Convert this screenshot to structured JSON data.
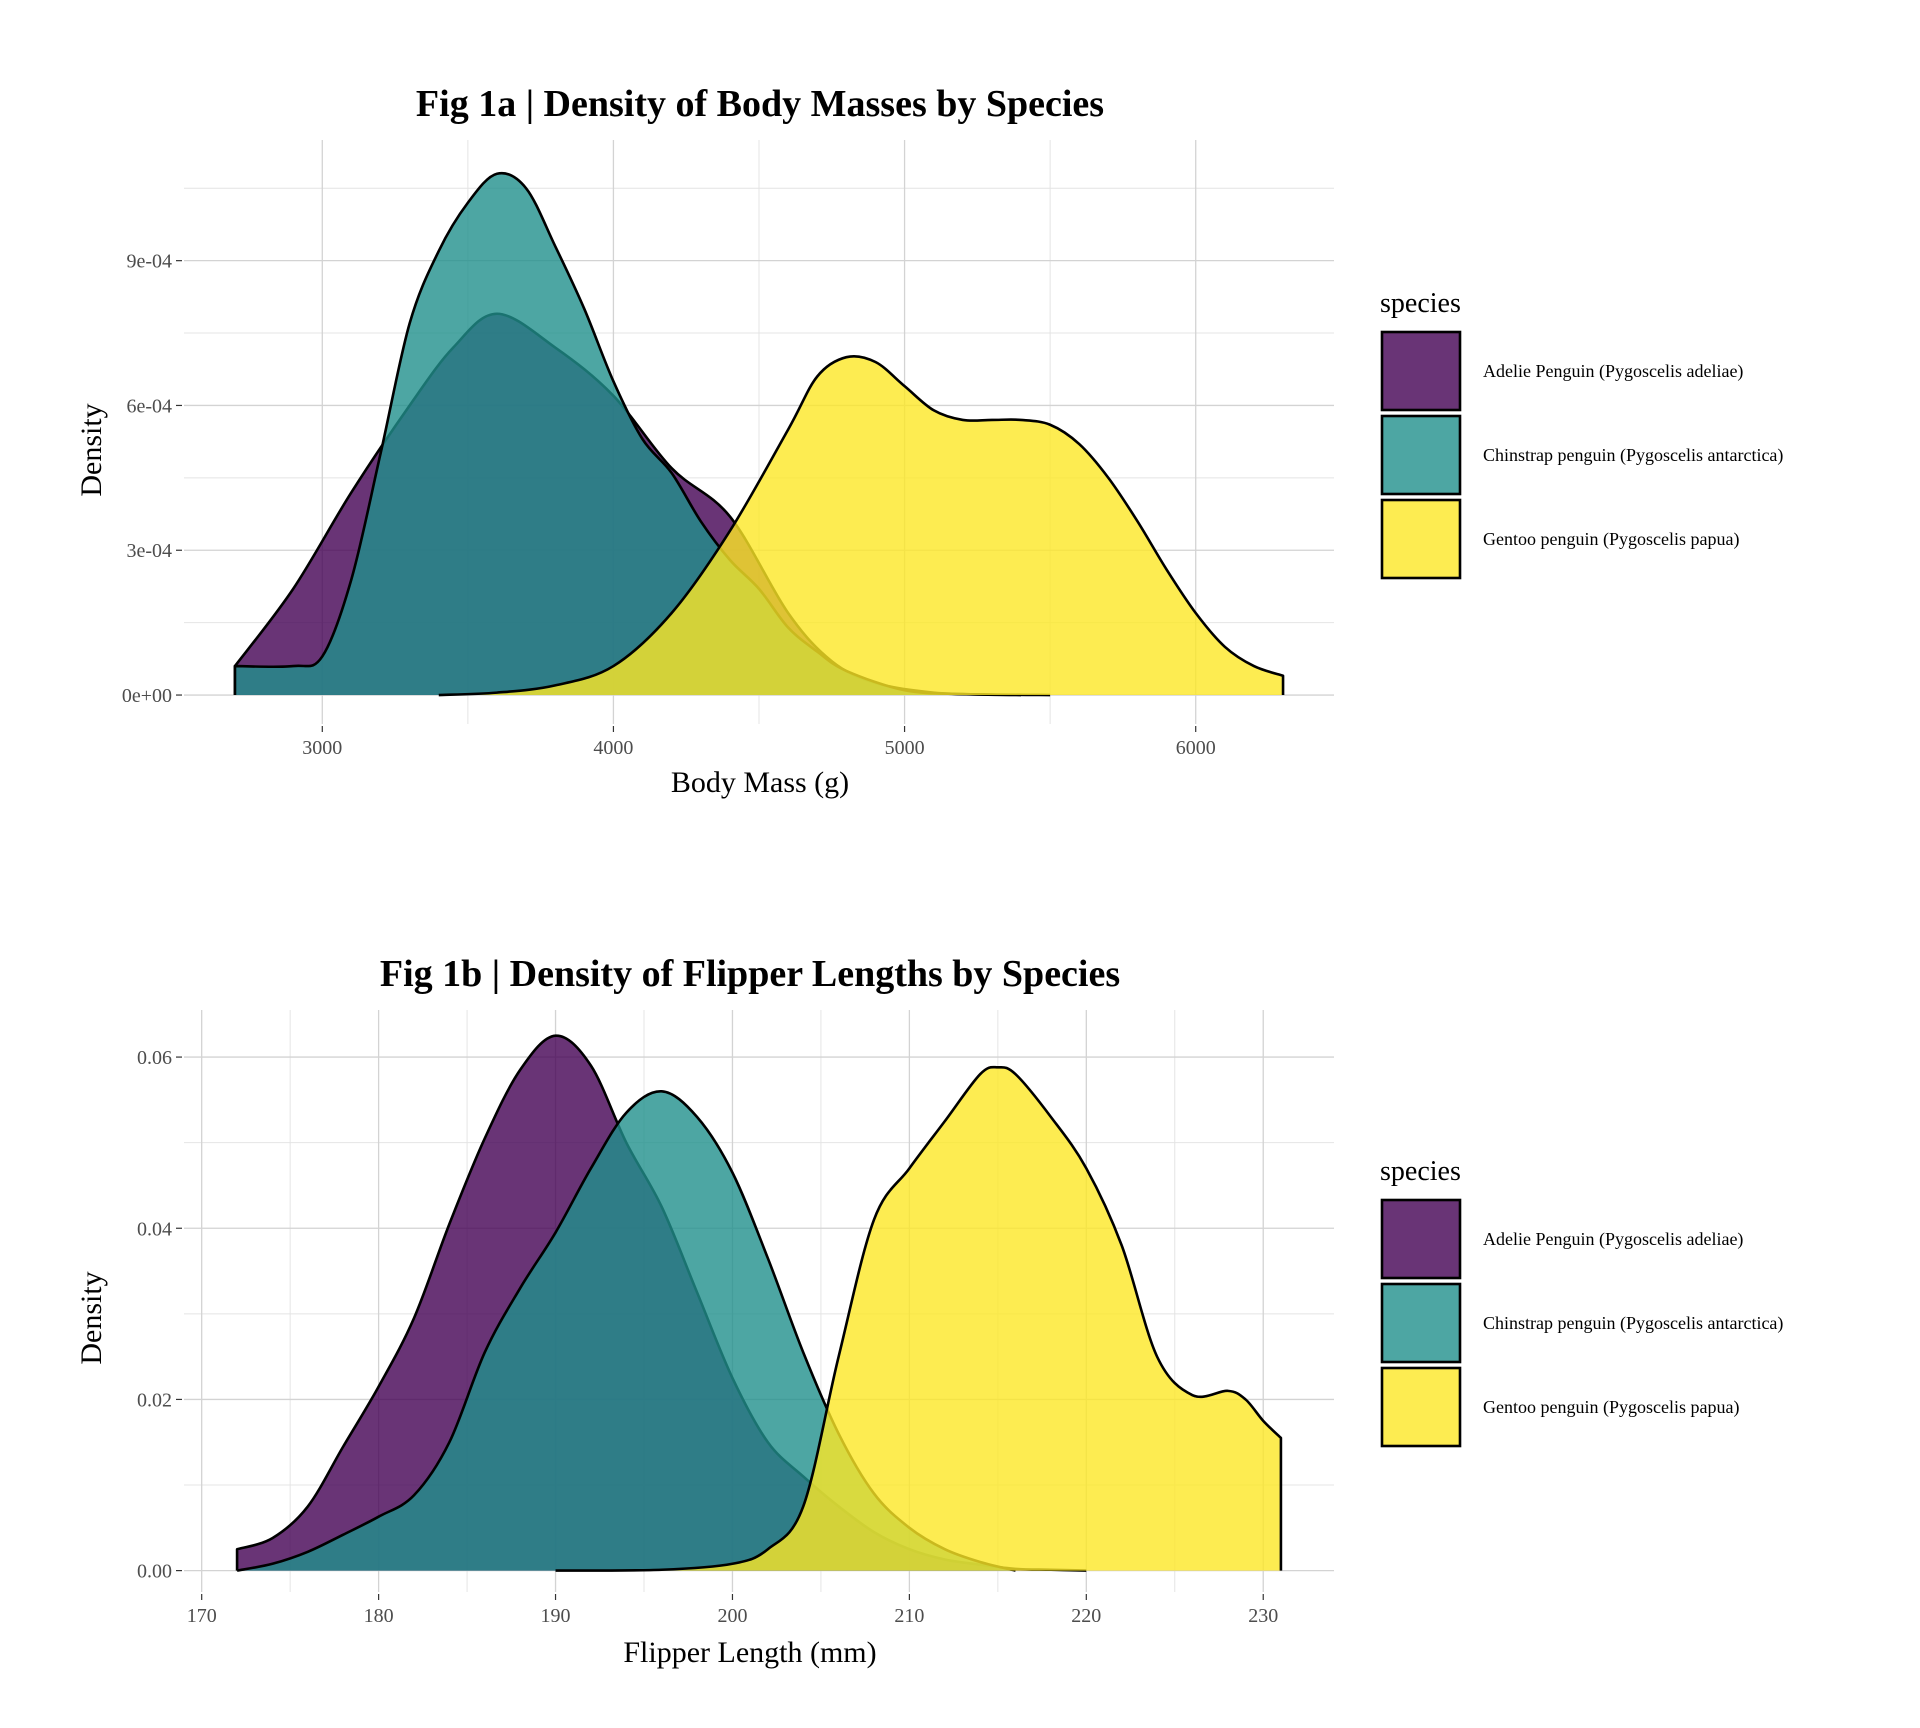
{
  "chart_data": [
    {
      "type": "area",
      "subtype": "density",
      "title": "Fig 1a | Density of Body Masses by Species",
      "xlabel": "Body Mass (g)",
      "ylabel": "Density",
      "xlim": [
        2525,
        6475
      ],
      "ylim": [
        -6e-05,
        0.00115
      ],
      "x_ticks": [
        3000,
        4000,
        5000,
        6000
      ],
      "y_ticks": [
        0,
        0.0003,
        0.0006,
        0.0009
      ],
      "y_tick_labels": [
        "0e+00",
        "3e-04",
        "6e-04",
        "9e-04"
      ],
      "grid": true,
      "legend": {
        "title": "species",
        "position": "right"
      },
      "series": [
        {
          "name": "Adelie Penguin (Pygoscelis adeliae)",
          "color": "#440154",
          "x": [
            2700,
            2900,
            3100,
            3300,
            3450,
            3600,
            3800,
            4000,
            4200,
            4400,
            4600,
            4750,
            4900,
            5100,
            5300,
            5500
          ],
          "y": [
            6e-05,
            0.00022,
            0.00042,
            0.0006,
            0.00072,
            0.00079,
            0.00072,
            0.00062,
            0.00047,
            0.00037,
            0.00017,
            7e-05,
            2.5e-05,
            5e-06,
            1e-06,
            0
          ]
        },
        {
          "name": "Chinstrap penguin (Pygoscelis antarctica)",
          "color": "#21908C",
          "x": [
            2700,
            2900,
            3000,
            3100,
            3200,
            3300,
            3400,
            3500,
            3600,
            3700,
            3800,
            3900,
            4000,
            4100,
            4200,
            4300,
            4400,
            4500,
            4600,
            4700,
            4800,
            5000,
            5200,
            5400
          ],
          "y": [
            6e-05,
            6e-05,
            8e-05,
            0.00024,
            0.0005,
            0.00077,
            0.00092,
            0.00102,
            0.00108,
            0.00105,
            0.00093,
            0.0008,
            0.00065,
            0.00053,
            0.00046,
            0.00036,
            0.00028,
            0.00022,
            0.00014,
            9e-05,
            5e-05,
            1e-05,
            2e-06,
            0
          ]
        },
        {
          "name": "Gentoo penguin (Pygoscelis papua)",
          "color": "#FDE725",
          "x": [
            3400,
            3600,
            3800,
            4000,
            4200,
            4400,
            4600,
            4700,
            4800,
            4900,
            5000,
            5100,
            5200,
            5300,
            5400,
            5500,
            5600,
            5700,
            5800,
            5900,
            6000,
            6100,
            6200,
            6300
          ],
          "y": [
            0,
            5e-06,
            2e-05,
            6e-05,
            0.00017,
            0.00034,
            0.00055,
            0.00066,
            0.0007,
            0.00069,
            0.00064,
            0.00059,
            0.00057,
            0.00057,
            0.00057,
            0.00056,
            0.00052,
            0.00045,
            0.00036,
            0.00026,
            0.00017,
            0.0001,
            6e-05,
            4e-05
          ]
        }
      ]
    },
    {
      "type": "area",
      "subtype": "density",
      "title": "Fig 1b | Density of Flipper Lengths by Species",
      "xlabel": "Flipper Length (mm)",
      "ylabel": "Density",
      "xlim": [
        169,
        234
      ],
      "ylim": [
        -0.0025,
        0.0655
      ],
      "x_ticks": [
        170,
        180,
        190,
        200,
        210,
        220,
        230
      ],
      "y_ticks": [
        0,
        0.02,
        0.04,
        0.06
      ],
      "y_tick_labels": [
        "0.00",
        "0.02",
        "0.04",
        "0.06"
      ],
      "grid": true,
      "legend": {
        "title": "species",
        "position": "right"
      },
      "series": [
        {
          "name": "Adelie Penguin (Pygoscelis adeliae)",
          "color": "#440154",
          "x": [
            172,
            174,
            176,
            178,
            180,
            182,
            184,
            186,
            188,
            190,
            192,
            194,
            196,
            198,
            200,
            202,
            204,
            206,
            208,
            210,
            212,
            214,
            216,
            218,
            220
          ],
          "y": [
            0.0025,
            0.0038,
            0.0075,
            0.0145,
            0.0215,
            0.0295,
            0.0405,
            0.0505,
            0.0585,
            0.0625,
            0.059,
            0.05,
            0.0425,
            0.0325,
            0.0225,
            0.015,
            0.011,
            0.0075,
            0.0045,
            0.0025,
            0.0013,
            0.0007,
            0.0002,
            0.0001,
            0
          ]
        },
        {
          "name": "Chinstrap penguin (Pygoscelis antarctica)",
          "color": "#21908C",
          "x": [
            172,
            174,
            176,
            178,
            180,
            182,
            184,
            186,
            188,
            190,
            192,
            194,
            196,
            198,
            200,
            202,
            204,
            206,
            208,
            210,
            212,
            214,
            216
          ],
          "y": [
            0,
            0.0008,
            0.0022,
            0.0042,
            0.0063,
            0.0088,
            0.015,
            0.0255,
            0.033,
            0.0395,
            0.047,
            0.0535,
            0.056,
            0.053,
            0.0465,
            0.0365,
            0.0255,
            0.016,
            0.009,
            0.005,
            0.0025,
            0.001,
            0
          ]
        },
        {
          "name": "Gentoo penguin (Pygoscelis papua)",
          "color": "#FDE725",
          "x": [
            190,
            196,
            200,
            202,
            204,
            206,
            208,
            210,
            212,
            214,
            215,
            216,
            218,
            220,
            222,
            224,
            226,
            228,
            229,
            230,
            231
          ],
          "y": [
            0,
            0.0001,
            0.0008,
            0.0025,
            0.0075,
            0.025,
            0.041,
            0.047,
            0.0525,
            0.058,
            0.0588,
            0.058,
            0.053,
            0.047,
            0.038,
            0.025,
            0.0205,
            0.021,
            0.02,
            0.0175,
            0.0155
          ]
        }
      ]
    }
  ]
}
